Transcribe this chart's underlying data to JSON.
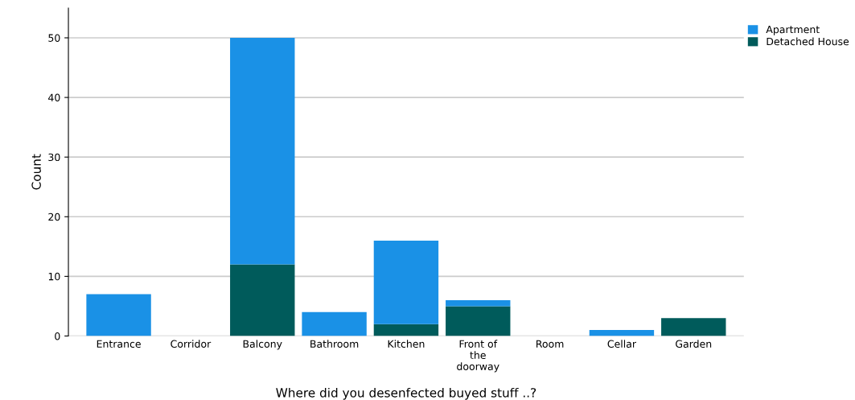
{
  "chart_data": {
    "type": "bar",
    "stacked": true,
    "xlabel": "Where did you desenfected buyed stuff ..?",
    "ylabel": "Count",
    "categories": [
      "Entrance",
      "Corridor",
      "Balcony",
      "Bathroom",
      "Kitchen",
      "Front of\nthe\ndoorway",
      "Room",
      "Cellar",
      "Garden"
    ],
    "series": [
      {
        "name": "Detached House",
        "color": "#005b5b",
        "values": [
          0,
          0,
          12,
          0,
          2,
          5,
          0,
          0,
          3
        ]
      },
      {
        "name": "Apartment",
        "color": "#1a91e6",
        "values": [
          7,
          0,
          38,
          4,
          14,
          1,
          0,
          1,
          0
        ]
      }
    ],
    "ylim": [
      0,
      55
    ],
    "yticks": [
      0,
      10,
      20,
      30,
      40,
      50
    ],
    "grid": "y",
    "legend": "top right"
  }
}
